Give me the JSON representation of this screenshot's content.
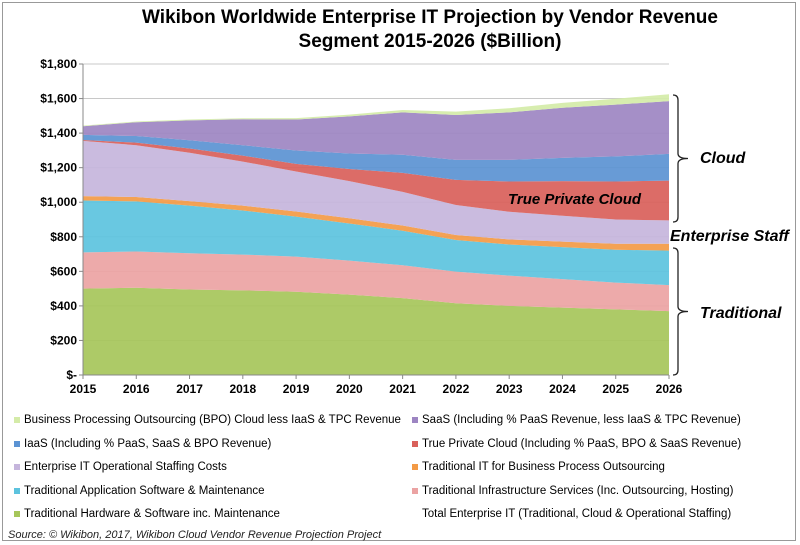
{
  "chart_data": {
    "type": "area",
    "stacked": true,
    "title": "Wikibon Worldwide Enterprise IT Projection by Vendor Revenue Segment 2015-2026 ($Billion)",
    "title_lines": [
      "Wikibon Worldwide Enterprise IT Projection by Vendor Revenue",
      "Segment 2015-2026 ($Billion)"
    ],
    "xlabel": "",
    "ylabel": "",
    "ylim": [
      0,
      1800
    ],
    "y_ticks": [
      0,
      200,
      400,
      600,
      800,
      1000,
      1200,
      1400,
      1600,
      1800
    ],
    "y_tick_labels": [
      "$-",
      "$200",
      "$400",
      "$600",
      "$800",
      "$1,000",
      "$1,200",
      "$1,400",
      "$1,600",
      "$1,800"
    ],
    "categories": [
      "2015",
      "2016",
      "2017",
      "2018",
      "2019",
      "2020",
      "2021",
      "2022",
      "2023",
      "2024",
      "2025",
      "2026"
    ],
    "grid": true,
    "legend_position": "bottom",
    "series": [
      {
        "name": "Traditional Hardware & Software inc. Maintenance",
        "color": "#a6c65a",
        "values": [
          500,
          505,
          495,
          490,
          482,
          465,
          445,
          415,
          400,
          390,
          380,
          370
        ]
      },
      {
        "name": "Traditional Infrastructure Services (Inc. Outsourcing, Hosting)",
        "color": "#eba3a3",
        "values": [
          210,
          210,
          210,
          207,
          203,
          197,
          190,
          183,
          175,
          165,
          155,
          150
        ]
      },
      {
        "name": "Traditional Application Software & Maintenance",
        "color": "#5cc3de",
        "values": [
          300,
          290,
          275,
          255,
          232,
          215,
          200,
          183,
          180,
          185,
          190,
          200
        ]
      },
      {
        "name": "Traditional IT for Business Process Outsourcing",
        "color": "#f39a45",
        "values": [
          25,
          25,
          26,
          28,
          29,
          30,
          30,
          29,
          30,
          32,
          35,
          40
        ]
      },
      {
        "name": "Enterprise IT Operational Staffing Costs",
        "color": "#c5b5dc",
        "values": [
          320,
          300,
          280,
          255,
          232,
          215,
          195,
          174,
          160,
          150,
          140,
          135
        ]
      },
      {
        "name": "True Private Cloud (Including % PaaS, BPO & SaaS Revenue)",
        "color": "#d9605a",
        "values": [
          5,
          15,
          25,
          35,
          44,
          70,
          110,
          145,
          175,
          200,
          220,
          230
        ]
      },
      {
        "name": "IaaS (Including % PaaS, SaaS & BPO Revenue)",
        "color": "#5b93d3",
        "values": [
          30,
          38,
          48,
          60,
          77,
          90,
          105,
          116,
          125,
          135,
          145,
          155
        ]
      },
      {
        "name": "SaaS (Including % PaaS Revenue, less IaaS & TPC Revenue)",
        "color": "#9d85c2",
        "values": [
          50,
          80,
          115,
          150,
          180,
          215,
          245,
          260,
          275,
          290,
          300,
          305
        ]
      },
      {
        "name": "Business Processing Outsourcing (BPO) Cloud less IaaS & TPC Revenue",
        "color": "#d4eba8",
        "values": [
          3,
          4,
          5,
          6,
          8,
          10,
          14,
          19,
          24,
          28,
          34,
          40
        ]
      }
    ],
    "legend_entries": [
      {
        "label": "Business Processing Outsourcing (BPO) Cloud less IaaS & TPC Revenue",
        "color": "#d4eba8"
      },
      {
        "label": "SaaS (Including % PaaS Revenue, less IaaS & TPC Revenue)",
        "color": "#9d85c2"
      },
      {
        "label": "IaaS (Including % PaaS, SaaS & BPO Revenue)",
        "color": "#5b93d3"
      },
      {
        "label": "True Private Cloud (Including % PaaS, BPO & SaaS Revenue)",
        "color": "#d9605a"
      },
      {
        "label": "Enterprise IT Operational Staffing Costs",
        "color": "#c5b5dc"
      },
      {
        "label": "Traditional IT for Business Process Outsourcing",
        "color": "#f39a45"
      },
      {
        "label": "Traditional Application Software & Maintenance",
        "color": "#5cc3de"
      },
      {
        "label": "Traditional Infrastructure Services (Inc. Outsourcing, Hosting)",
        "color": "#eba3a3"
      },
      {
        "label": "Traditional Hardware & Software inc. Maintenance",
        "color": "#a6c65a"
      },
      {
        "label": "Total Enterprise IT (Traditional, Cloud & Operational Staffing)",
        "color": ""
      }
    ],
    "annotations": {
      "tpc_label": "True Private Cloud",
      "cloud": "Cloud",
      "staff": "Enterprise Staff",
      "traditional": "Traditional"
    }
  },
  "source": "Source: © Wikibon, 2017, Wikibon Cloud Vendor Revenue Projection Project"
}
